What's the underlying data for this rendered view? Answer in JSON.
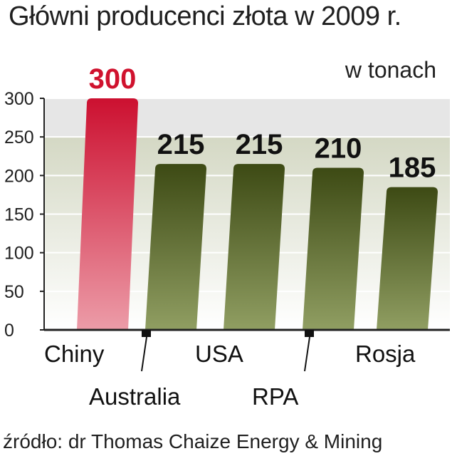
{
  "title": "Główni producenci złota w 2009 r.",
  "unit_label": "w tonach",
  "source": "źródło: dr Thomas Chaize Energy & Mining",
  "colors": {
    "highlight_top": "#cc1030",
    "highlight_bottom": "#ec9ca8",
    "bar_top": "#3d4a14",
    "bar_bottom": "#909e62",
    "highlight_label": "#d0122e",
    "value_label": "#111111",
    "plot_bg": "#e6e6e6",
    "band": "#d4d8c4"
  },
  "chart_data": {
    "type": "bar",
    "title": "Główni producenci złota w 2009 r.",
    "unit": "w tonach",
    "categories": [
      "Chiny",
      "Australia",
      "USA",
      "RPA",
      "Rosja"
    ],
    "values": [
      300,
      215,
      215,
      210,
      185
    ],
    "highlighted": "Chiny",
    "ylim": [
      0,
      300
    ],
    "yticks": [
      0,
      50,
      100,
      150,
      200,
      250,
      300
    ],
    "ytick_labels": [
      "0",
      "50",
      "100",
      "150",
      "200",
      "250",
      "300"
    ],
    "grid": true,
    "legend": "none"
  }
}
